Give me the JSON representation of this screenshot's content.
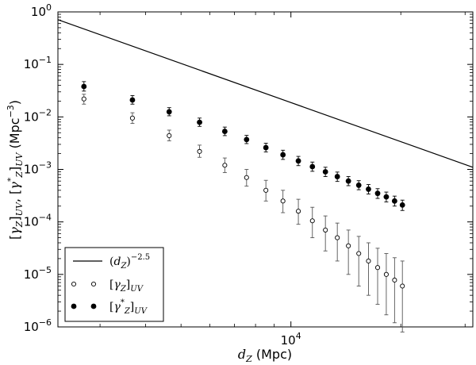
{
  "chart_data": {
    "type": "scatter",
    "xscale": "log",
    "yscale": "log",
    "xlim": [
      2300,
      31500
    ],
    "ylim": [
      1e-06,
      1
    ],
    "grid": false,
    "legend_position": "bottom-left",
    "xlabel": "d_Z (Mpc)",
    "ylabel": "[γ_Z]_UV, [γ*_Z]_UV (Mpc^-3)",
    "x_tick_labels": [
      "10^4"
    ],
    "y_tick_labels": [
      "10^-6",
      "10^-5",
      "10^-4",
      "10^-3",
      "10^-2",
      "10^-1",
      "10^0"
    ],
    "line": {
      "name": "(d_Z)^-2.5",
      "x": [
        2300,
        31500
      ],
      "y": [
        0.71,
        0.0011
      ],
      "color": "#000000"
    },
    "series": [
      {
        "name": "[γ_Z]_UV",
        "marker": "open-circle",
        "x": [
          2710,
          3680,
          4640,
          5620,
          6590,
          7560,
          8540,
          9510,
          10480,
          11450,
          12430,
          13400,
          14370,
          15340,
          16310,
          17280,
          18250,
          19230,
          20200
        ],
        "y": [
          0.022,
          0.0095,
          0.0044,
          0.0022,
          0.0012,
          0.0007,
          0.0004,
          0.00025,
          0.00016,
          0.000105,
          7e-05,
          5e-05,
          3.5e-05,
          2.5e-05,
          1.8e-05,
          1.35e-05,
          1e-05,
          7.8e-06,
          6e-06
        ],
        "err_low": [
          0.0045,
          0.002,
          0.0009,
          0.0005,
          0.00033,
          0.00022,
          0.00015,
          0.0001,
          7e-05,
          5.5e-05,
          4.2e-05,
          3.2e-05,
          2.5e-05,
          1.9e-05,
          1.4e-05,
          1.08e-05,
          8.3e-06,
          6.6e-06,
          5.2e-06
        ],
        "err_high": [
          0.005,
          0.0025,
          0.0012,
          0.0007,
          0.00045,
          0.0003,
          0.00022,
          0.00015,
          0.00011,
          8.5e-05,
          6e-05,
          4.5e-05,
          3.5e-05,
          2.8e-05,
          2.2e-05,
          1.8e-05,
          1.5e-05,
          1.3e-05,
          1.2e-05
        ]
      },
      {
        "name": "[γ*_Z]_UV",
        "marker": "filled-circle",
        "x": [
          2710,
          3680,
          4640,
          5620,
          6590,
          7560,
          8540,
          9510,
          10480,
          11450,
          12430,
          13400,
          14370,
          15340,
          16310,
          17280,
          18250,
          19230,
          20200
        ],
        "y": [
          0.038,
          0.021,
          0.0125,
          0.0079,
          0.0053,
          0.0037,
          0.0026,
          0.0019,
          0.00145,
          0.00113,
          0.0009,
          0.00073,
          0.0006,
          0.0005,
          0.00042,
          0.00035,
          0.0003,
          0.00025,
          0.00021
        ],
        "err_low": [
          0.007,
          0.0035,
          0.002,
          0.0013,
          0.0009,
          0.0006,
          0.00045,
          0.00035,
          0.00027,
          0.00021,
          0.00017,
          0.00014,
          0.00011,
          9e-05,
          8e-05,
          7e-05,
          6e-05,
          5e-05,
          4.5e-05
        ],
        "err_high": [
          0.009,
          0.0045,
          0.0025,
          0.0016,
          0.0011,
          0.00075,
          0.00055,
          0.00042,
          0.00032,
          0.00025,
          0.0002,
          0.00016,
          0.00013,
          0.00011,
          9.5e-05,
          8e-05,
          7e-05,
          6e-05,
          5e-05
        ]
      }
    ]
  }
}
